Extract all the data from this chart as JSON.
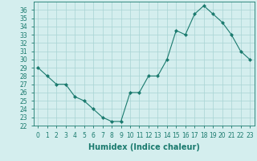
{
  "x": [
    0,
    1,
    2,
    3,
    4,
    5,
    6,
    7,
    8,
    9,
    10,
    11,
    12,
    13,
    14,
    15,
    16,
    17,
    18,
    19,
    20,
    21,
    22,
    23
  ],
  "y": [
    29,
    28,
    27,
    27,
    25.5,
    25,
    24,
    23,
    22.5,
    22.5,
    26,
    26,
    28,
    28,
    30,
    33.5,
    33,
    35.5,
    36.5,
    35.5,
    34.5,
    33,
    31,
    30
  ],
  "line_color": "#1a7a6e",
  "marker": "D",
  "marker_size": 2,
  "bg_color": "#d4eeee",
  "grid_color": "#a8d4d4",
  "xlabel": "Humidex (Indice chaleur)",
  "ylim": [
    22,
    37
  ],
  "xlim": [
    -0.5,
    23.5
  ],
  "yticks": [
    22,
    23,
    24,
    25,
    26,
    27,
    28,
    29,
    30,
    31,
    32,
    33,
    34,
    35,
    36
  ],
  "xticks": [
    0,
    1,
    2,
    3,
    4,
    5,
    6,
    7,
    8,
    9,
    10,
    11,
    12,
    13,
    14,
    15,
    16,
    17,
    18,
    19,
    20,
    21,
    22,
    23
  ],
  "tick_fontsize": 5.5,
  "label_fontsize": 7,
  "tick_color": "#1a7a6e",
  "spine_color": "#1a7a6e"
}
